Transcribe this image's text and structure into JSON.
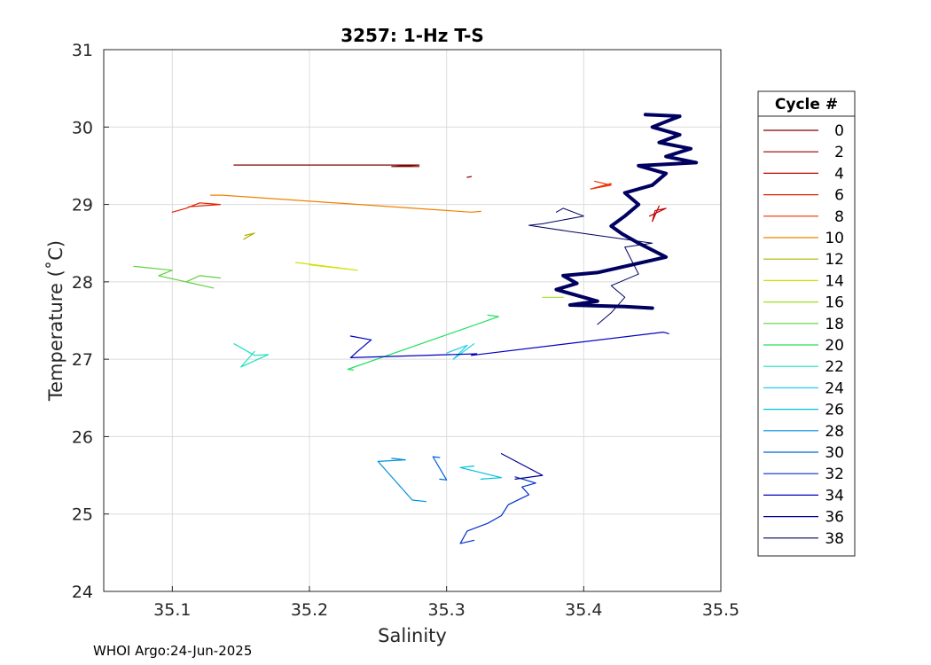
{
  "chart_data": {
    "type": "line",
    "title": "3257: 1-Hz T-S",
    "xlabel": "Salinity",
    "ylabel": "Temperature (˚C)",
    "xlim": [
      35.05,
      35.5
    ],
    "ylim": [
      24,
      31
    ],
    "xticks": [
      "35.1",
      "35.2",
      "35.3",
      "35.4",
      "35.5"
    ],
    "yticks": [
      "24",
      "25",
      "26",
      "27",
      "28",
      "29",
      "30",
      "31"
    ],
    "grid": true,
    "legend": {
      "title": "Cycle #",
      "placement": "right-outside"
    },
    "series": [
      {
        "name": "0",
        "color": "#7f0000",
        "width": 1.2,
        "points": [
          [
            35.145,
            29.51
          ],
          [
            35.28,
            29.51
          ],
          [
            35.26,
            29.49
          ],
          [
            35.28,
            29.49
          ]
        ]
      },
      {
        "name": "2",
        "color": "#8f0000",
        "width": 1.2,
        "points": [
          [
            35.315,
            29.35
          ],
          [
            35.318,
            29.36
          ]
        ]
      },
      {
        "name": "4",
        "color": "#c00000",
        "width": 1.2,
        "points": [
          [
            35.455,
            28.98
          ],
          [
            35.45,
            28.78
          ],
          [
            35.452,
            28.92
          ],
          [
            35.46,
            28.95
          ],
          [
            35.448,
            28.85
          ]
        ]
      },
      {
        "name": "6",
        "color": "#e02000",
        "width": 1.2,
        "points": [
          [
            35.1,
            28.9
          ],
          [
            35.11,
            28.95
          ],
          [
            35.12,
            29.02
          ],
          [
            35.135,
            29.0
          ],
          [
            35.112,
            28.97
          ]
        ]
      },
      {
        "name": "8",
        "color": "#f03000",
        "width": 1.2,
        "points": [
          [
            35.408,
            29.3
          ],
          [
            35.42,
            29.25
          ],
          [
            35.405,
            29.2
          ],
          [
            35.42,
            29.27
          ],
          [
            35.41,
            29.22
          ]
        ]
      },
      {
        "name": "10",
        "color": "#f08000",
        "width": 1.2,
        "points": [
          [
            35.128,
            29.12
          ],
          [
            35.136,
            29.12
          ],
          [
            35.318,
            28.9
          ],
          [
            35.325,
            28.91
          ]
        ]
      },
      {
        "name": "12",
        "color": "#b0b000",
        "width": 1.2,
        "points": [
          [
            35.153,
            28.6
          ],
          [
            35.16,
            28.63
          ],
          [
            35.152,
            28.55
          ]
        ]
      },
      {
        "name": "14",
        "color": "#d0e000",
        "width": 1.2,
        "points": [
          [
            35.19,
            28.25
          ],
          [
            35.235,
            28.15
          ],
          [
            35.2,
            28.22
          ]
        ]
      },
      {
        "name": "16",
        "color": "#a0e020",
        "width": 1.2,
        "points": [
          [
            35.37,
            27.8
          ],
          [
            35.385,
            27.8
          ]
        ]
      },
      {
        "name": "18",
        "color": "#60d040",
        "width": 1.2,
        "points": [
          [
            35.072,
            28.2
          ],
          [
            35.1,
            28.15
          ],
          [
            35.09,
            28.08
          ],
          [
            35.13,
            27.92
          ],
          [
            35.11,
            28.0
          ],
          [
            35.12,
            28.08
          ],
          [
            35.135,
            28.05
          ]
        ]
      },
      {
        "name": "20",
        "color": "#20e060",
        "width": 1.2,
        "points": [
          [
            35.33,
            27.57
          ],
          [
            35.338,
            27.55
          ],
          [
            35.228,
            26.87
          ],
          [
            35.232,
            26.86
          ]
        ]
      },
      {
        "name": "22",
        "color": "#20e0c0",
        "width": 1.2,
        "points": [
          [
            35.145,
            27.2
          ],
          [
            35.16,
            27.05
          ],
          [
            35.17,
            27.06
          ],
          [
            35.15,
            26.9
          ],
          [
            35.16,
            27.1
          ]
        ]
      },
      {
        "name": "24",
        "color": "#20d0e0",
        "width": 1.2,
        "points": [
          [
            35.3,
            27.08
          ],
          [
            35.315,
            27.18
          ],
          [
            35.305,
            27.0
          ],
          [
            35.32,
            27.2
          ]
        ]
      },
      {
        "name": "26",
        "color": "#00c0e0",
        "width": 1.2,
        "points": [
          [
            35.325,
            25.45
          ],
          [
            35.34,
            25.47
          ],
          [
            35.31,
            25.6
          ],
          [
            35.32,
            25.62
          ]
        ]
      },
      {
        "name": "28",
        "color": "#0090e0",
        "width": 1.2,
        "points": [
          [
            35.26,
            25.72
          ],
          [
            35.27,
            25.7
          ],
          [
            35.25,
            25.68
          ],
          [
            35.275,
            25.18
          ],
          [
            35.285,
            25.16
          ]
        ]
      },
      {
        "name": "30",
        "color": "#0060e0",
        "width": 1.2,
        "points": [
          [
            35.295,
            25.45
          ],
          [
            35.3,
            25.44
          ],
          [
            35.29,
            25.74
          ],
          [
            35.295,
            25.73
          ]
        ]
      },
      {
        "name": "32",
        "color": "#0030d0",
        "width": 1.2,
        "points": [
          [
            35.35,
            25.48
          ],
          [
            35.365,
            25.4
          ],
          [
            35.355,
            25.35
          ],
          [
            35.36,
            25.25
          ],
          [
            35.345,
            25.12
          ],
          [
            35.34,
            24.98
          ],
          [
            35.33,
            24.88
          ],
          [
            35.315,
            24.78
          ],
          [
            35.31,
            24.62
          ],
          [
            35.32,
            24.66
          ]
        ]
      },
      {
        "name": "34",
        "color": "#0000c0",
        "width": 1.2,
        "points": [
          [
            35.23,
            27.3
          ],
          [
            35.245,
            27.25
          ],
          [
            35.235,
            27.1
          ],
          [
            35.23,
            27.02
          ],
          [
            35.322,
            27.07
          ],
          [
            35.318,
            27.05
          ],
          [
            35.458,
            27.35
          ],
          [
            35.462,
            27.33
          ]
        ]
      },
      {
        "name": "36",
        "color": "#000090",
        "width": 1.2,
        "points": [
          [
            35.34,
            25.78
          ],
          [
            35.37,
            25.5
          ],
          [
            35.35,
            25.45
          ]
        ]
      },
      {
        "name": "38",
        "color": "#000060",
        "width": 4,
        "points": [
          [
            35.445,
            30.16
          ],
          [
            35.47,
            30.14
          ],
          [
            35.45,
            30.0
          ],
          [
            35.47,
            29.9
          ],
          [
            35.455,
            29.8
          ],
          [
            35.478,
            29.72
          ],
          [
            35.46,
            29.62
          ],
          [
            35.482,
            29.54
          ],
          [
            35.44,
            29.5
          ],
          [
            35.46,
            29.4
          ],
          [
            35.45,
            29.25
          ],
          [
            35.43,
            29.15
          ],
          [
            35.44,
            29.0
          ],
          [
            35.43,
            28.85
          ],
          [
            35.42,
            28.72
          ],
          [
            35.428,
            28.62
          ],
          [
            35.44,
            28.5
          ],
          [
            35.46,
            28.32
          ],
          [
            35.43,
            28.2
          ],
          [
            35.41,
            28.12
          ],
          [
            35.385,
            28.08
          ],
          [
            35.395,
            27.98
          ],
          [
            35.38,
            27.9
          ],
          [
            35.4,
            27.8
          ],
          [
            35.41,
            27.75
          ],
          [
            35.39,
            27.7
          ],
          [
            35.43,
            27.68
          ],
          [
            35.45,
            27.66
          ]
        ]
      },
      {
        "name": "",
        "color": "#000060",
        "width": 1,
        "points": [
          [
            35.38,
            28.9
          ],
          [
            35.385,
            28.95
          ],
          [
            35.4,
            28.85
          ],
          [
            35.37,
            28.75
          ],
          [
            35.36,
            28.73
          ],
          [
            35.39,
            28.65
          ],
          [
            35.45,
            28.5
          ],
          [
            35.43,
            28.45
          ],
          [
            35.44,
            28.1
          ],
          [
            35.42,
            27.95
          ],
          [
            35.43,
            27.8
          ],
          [
            35.42,
            27.6
          ],
          [
            35.41,
            27.45
          ]
        ]
      }
    ]
  },
  "footer": "WHOI Argo:24-Jun-2025"
}
